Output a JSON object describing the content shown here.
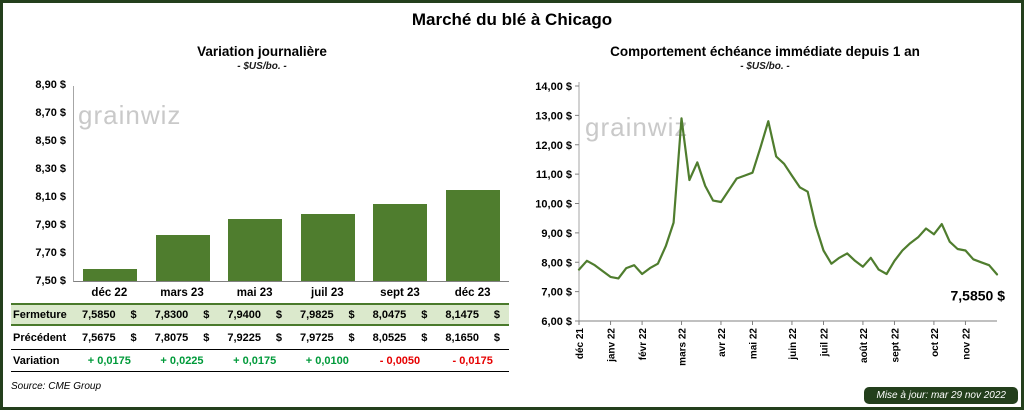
{
  "page": {
    "title": "Marché du blé à Chicago",
    "source": "Source: CME Group",
    "updated": "Mise à jour: mar 29 nov 2022",
    "watermark": "grainwiz"
  },
  "colors": {
    "accent_green": "#4f7d2e",
    "dark_green": "#233f1c",
    "highlight_row": "#dbe9cc",
    "positive": "#009a3a",
    "negative": "#e60000"
  },
  "left_chart": {
    "title": "Variation journalière",
    "subtitle": "- $US/bo. -"
  },
  "right_chart": {
    "title": "Comportement échéance immédiate depuis 1 an",
    "subtitle": "- $US/bo. -",
    "end_label": "7,5850 $"
  },
  "table": {
    "categories": [
      "déc 22",
      "mars 23",
      "mai 23",
      "juil 23",
      "sept 23",
      "déc 23"
    ],
    "rows": [
      {
        "id": "fermeture",
        "label": "Fermeture",
        "values": [
          "7,5850 $",
          "7,8300 $",
          "7,9400 $",
          "7,9825 $",
          "8,0475 $",
          "8,1475 $"
        ],
        "highlight": true
      },
      {
        "id": "precedent",
        "label": "Précédent",
        "values": [
          "7,5675 $",
          "7,8075 $",
          "7,9225 $",
          "7,9725 $",
          "8,0525 $",
          "8,1650 $"
        ],
        "highlight": false
      },
      {
        "id": "variation",
        "label": "Variation",
        "values": [
          "+ 0,0175",
          "+ 0,0225",
          "+ 0,0175",
          "+ 0,0100",
          "- 0,0050",
          "- 0,0175"
        ],
        "signs": [
          "pos",
          "pos",
          "pos",
          "pos",
          "neg",
          "neg"
        ],
        "highlight": false
      }
    ]
  },
  "chart_data": [
    {
      "type": "bar",
      "title": "Variation journalière",
      "subtitle": "- $US/bo. -",
      "categories": [
        "déc 22",
        "mars 23",
        "mai 23",
        "juil 23",
        "sept 23",
        "déc 23"
      ],
      "values": [
        7.585,
        7.83,
        7.94,
        7.9825,
        8.0475,
        8.1475
      ],
      "ylim": [
        7.5,
        8.9
      ],
      "ytick_step": 0.2,
      "ytick_labels": [
        "8,90 $",
        "8,70 $",
        "8,50 $",
        "8,30 $",
        "8,10 $",
        "7,90 $",
        "7,70 $",
        "7,50 $"
      ],
      "bar_color": "#4f7d2e",
      "grid": false,
      "legend": "none"
    },
    {
      "type": "line",
      "title": "Comportement échéance immédiate depuis 1 an",
      "subtitle": "- $US/bo. -",
      "x_labels": [
        "déc 21",
        "janv 22",
        "févr 22",
        "mars 22",
        "avr 22",
        "mai 22",
        "juin 22",
        "juil 22",
        "août 22",
        "sept 22",
        "oct 22",
        "nov 22"
      ],
      "month_starts": [
        0,
        4,
        8,
        13,
        18,
        22,
        27,
        31,
        36,
        40,
        45,
        49
      ],
      "values": [
        7.75,
        8.05,
        7.9,
        7.7,
        7.5,
        7.45,
        7.8,
        7.9,
        7.6,
        7.8,
        7.95,
        8.55,
        9.35,
        12.9,
        10.8,
        11.4,
        10.6,
        10.1,
        10.05,
        10.45,
        10.85,
        10.95,
        11.05,
        11.9,
        12.8,
        11.6,
        11.35,
        10.95,
        10.55,
        10.4,
        9.25,
        8.4,
        7.95,
        8.15,
        8.3,
        8.05,
        7.85,
        8.15,
        7.75,
        7.6,
        8.05,
        8.4,
        8.65,
        8.85,
        9.15,
        8.95,
        9.3,
        8.7,
        8.45,
        8.4,
        8.1,
        8.0,
        7.9,
        7.585
      ],
      "ylim": [
        6.0,
        14.0
      ],
      "ytick_step": 1.0,
      "ytick_labels": [
        "14,00 $",
        "13,00 $",
        "12,00 $",
        "11,00 $",
        "10,00 $",
        "9,00 $",
        "8,00 $",
        "7,00 $",
        "6,00 $"
      ],
      "line_color": "#4f7d2e",
      "end_label": "7,5850 $",
      "grid": false,
      "legend": "none"
    }
  ]
}
